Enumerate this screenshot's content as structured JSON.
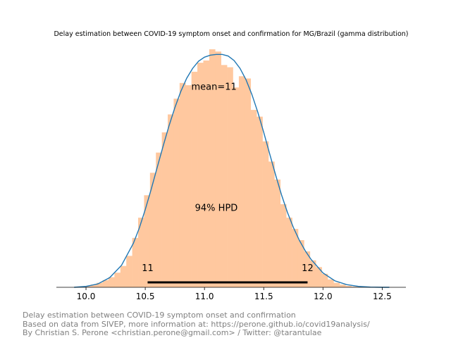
{
  "chart_data": {
    "type": "histogram+kde",
    "title": "Delay estimation between COVID-19 symptom onset and confirmation for MG/Brazil (gamma distribution)",
    "xlabel": "",
    "ylabel": "",
    "xlim": [
      9.75,
      12.7
    ],
    "ylim": [
      0,
      1.06
    ],
    "x_ticks": [
      10.0,
      10.5,
      11.0,
      11.5,
      12.0,
      12.5
    ],
    "x_tick_labels": [
      "10.0",
      "10.5",
      "11.0",
      "11.5",
      "12.0",
      "12.5"
    ],
    "grid": false,
    "histogram": {
      "color": "#ffc89f",
      "bin_edges": [
        9.94,
        9.99,
        10.04,
        10.09,
        10.14,
        10.19,
        10.24,
        10.29,
        10.34,
        10.39,
        10.44,
        10.49,
        10.54,
        10.59,
        10.64,
        10.69,
        10.74,
        10.79,
        10.84,
        10.89,
        10.94,
        10.99,
        11.04,
        11.09,
        11.14,
        11.19,
        11.24,
        11.29,
        11.34,
        11.39,
        11.44,
        11.49,
        11.54,
        11.59,
        11.64,
        11.69,
        11.74,
        11.79,
        11.84,
        11.89,
        11.94,
        11.99,
        12.04,
        12.09,
        12.14,
        12.19,
        12.24,
        12.29,
        12.34,
        12.39,
        12.44,
        12.49
      ],
      "densities": [
        0.003,
        0.006,
        0.012,
        0.02,
        0.032,
        0.045,
        0.065,
        0.095,
        0.14,
        0.22,
        0.31,
        0.41,
        0.51,
        0.6,
        0.69,
        0.77,
        0.84,
        0.91,
        0.9,
        0.96,
        1.0,
        1.01,
        1.06,
        1.05,
        0.99,
        0.98,
        0.89,
        0.94,
        0.93,
        0.79,
        0.76,
        0.65,
        0.56,
        0.48,
        0.37,
        0.31,
        0.26,
        0.21,
        0.16,
        0.12,
        0.09,
        0.06,
        0.035,
        0.02,
        0.012,
        0.006,
        0.003,
        0.002,
        0.001,
        0.001,
        0.001
      ]
    },
    "kde": {
      "color": "#1f77b4",
      "x": [
        9.9,
        10.0,
        10.1,
        10.2,
        10.3,
        10.4,
        10.45,
        10.5,
        10.55,
        10.6,
        10.65,
        10.7,
        10.75,
        10.8,
        10.85,
        10.9,
        10.95,
        11.0,
        11.05,
        11.1,
        11.15,
        11.2,
        11.25,
        11.3,
        11.35,
        11.4,
        11.45,
        11.5,
        11.55,
        11.6,
        11.65,
        11.7,
        11.75,
        11.8,
        11.85,
        11.9,
        12.0,
        12.1,
        12.2,
        12.3,
        12.4,
        12.5,
        12.56
      ],
      "y": [
        0.0,
        0.004,
        0.015,
        0.043,
        0.098,
        0.196,
        0.264,
        0.346,
        0.436,
        0.532,
        0.627,
        0.718,
        0.8,
        0.872,
        0.931,
        0.975,
        1.007,
        1.025,
        1.034,
        1.037,
        1.037,
        1.03,
        1.01,
        0.975,
        0.925,
        0.859,
        0.78,
        0.69,
        0.595,
        0.501,
        0.412,
        0.334,
        0.267,
        0.21,
        0.163,
        0.124,
        0.064,
        0.029,
        0.012,
        0.004,
        0.001,
        0.0,
        0.0
      ]
    },
    "annotations": {
      "mean_label": "mean=11",
      "mean_at": [
        11.08,
        0.88
      ],
      "hpd_label": "94% HPD",
      "hpd_at": [
        11.1,
        0.34
      ],
      "hpd_interval": [
        10.52,
        11.87
      ],
      "hpd_low_label": "11",
      "hpd_high_label": "12"
    }
  },
  "footer": {
    "line1": "Delay estimation between COVID-19 symptom onset and confirmation",
    "line2": "Based on data from SIVEP, more information at: https://perone.github.io/covid19analysis/",
    "line3": "By Christian S. Perone <christian.perone@gmail.com> / Twitter: @tarantulae"
  }
}
